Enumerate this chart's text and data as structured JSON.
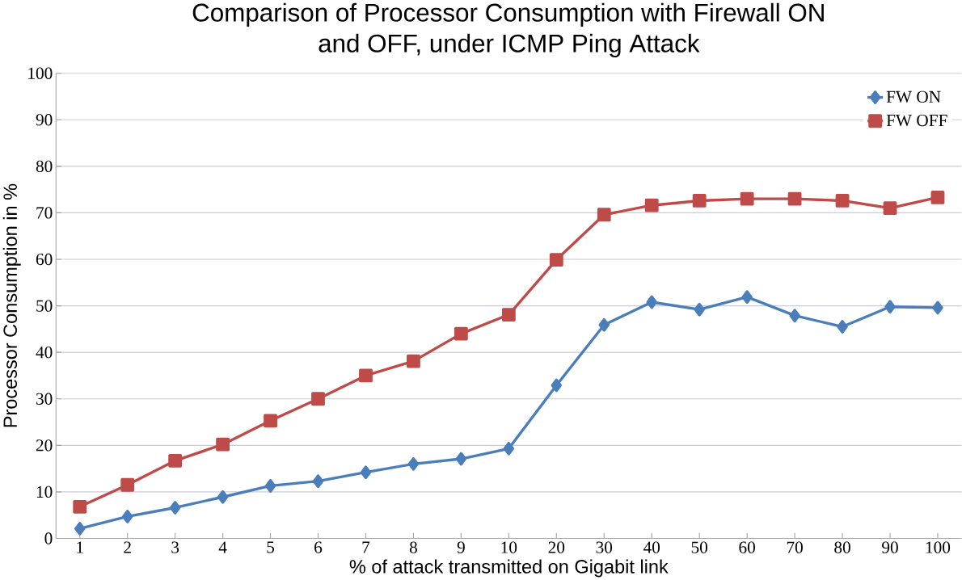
{
  "chart_data": {
    "type": "line",
    "title": "Comparison of Processor Consumption with Firewall ON\nand OFF, under ICMP Ping Attack",
    "xlabel": "% of attack transmitted on Gigabit link",
    "ylabel": "Processor Consumption in %",
    "categories": [
      "1",
      "2",
      "3",
      "4",
      "5",
      "6",
      "7",
      "8",
      "9",
      "10",
      "20",
      "30",
      "40",
      "50",
      "60",
      "70",
      "80",
      "90",
      "100"
    ],
    "series": [
      {
        "name": "FW ON",
        "color": "#4a7ebb",
        "marker": "diamond",
        "values": [
          2.1,
          4.7,
          6.6,
          8.9,
          11.3,
          12.3,
          14.2,
          16,
          17.1,
          19.3,
          32.9,
          45.9,
          50.8,
          49.2,
          51.9,
          47.9,
          45.5,
          49.8,
          49.6
        ]
      },
      {
        "name": "FW OFF",
        "color": "#be4b48",
        "marker": "square",
        "values": [
          6.8,
          11.5,
          16.7,
          20.2,
          25.3,
          30,
          35,
          38.1,
          44,
          48.1,
          59.9,
          69.6,
          71.6,
          72.6,
          73,
          73,
          72.6,
          71,
          73.3
        ]
      }
    ],
    "ylim": [
      0,
      100
    ],
    "yticks": [
      0,
      10,
      20,
      30,
      40,
      50,
      60,
      70,
      80,
      90,
      100
    ],
    "grid": "y",
    "legend": "top right"
  }
}
